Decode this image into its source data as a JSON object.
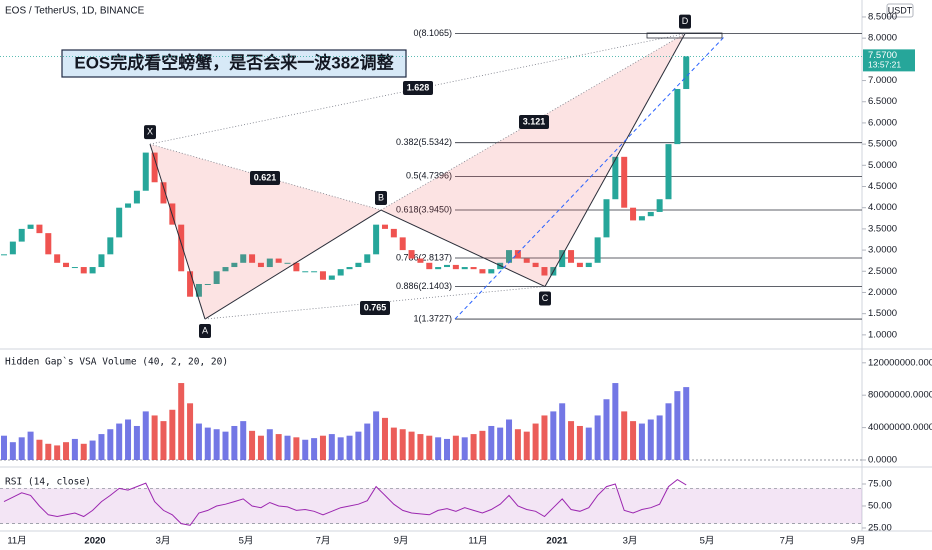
{
  "header": {
    "symbol": "EOS / TetherUS, 1D, BINANCE",
    "currency": "USDT"
  },
  "annotation": "EOS完成看空螃蟹，是否会来一波382调整",
  "x_labels": [
    "11月",
    "2020",
    "3月",
    "5月",
    "7月",
    "9月",
    "11月",
    "2021",
    "3月",
    "5月",
    "7月",
    "9月"
  ],
  "chart_data": [
    {
      "type": "candlestick",
      "values": [
        2.9,
        3.2,
        3.5,
        3.6,
        3.4,
        2.9,
        2.7,
        2.6,
        2.6,
        2.45,
        2.6,
        2.9,
        3.3,
        4.0,
        4.1,
        4.4,
        5.3,
        4.6,
        4.1,
        3.6,
        2.5,
        1.9,
        2.2,
        2.2,
        2.5,
        2.6,
        2.7,
        2.9,
        2.7,
        2.6,
        2.8,
        2.7,
        2.7,
        2.5,
        2.5,
        2.5,
        2.3,
        2.4,
        2.55,
        2.6,
        2.7,
        2.9,
        3.6,
        3.5,
        3.3,
        3.0,
        2.8,
        2.7,
        2.55,
        2.6,
        2.65,
        2.55,
        2.6,
        2.55,
        2.45,
        2.55,
        2.7,
        3.0,
        2.8,
        2.7,
        2.6,
        2.4,
        2.6,
        3.0,
        2.7,
        2.6,
        2.7,
        3.3,
        4.2,
        5.2,
        4.0,
        3.7,
        3.8,
        3.9,
        4.2,
        5.5,
        6.8,
        7.57
      ],
      "up_color": "#26a69a",
      "down_color": "#ef5350",
      "ylim": [
        0.69,
        8.9
      ],
      "yticks": [
        {
          "value": 8.5,
          "label": "8.5000"
        },
        {
          "value": 8.0,
          "label": "8.0000"
        },
        {
          "value": 7.0,
          "label": "7.0000"
        },
        {
          "value": 6.5,
          "label": "6.5000"
        },
        {
          "value": 6.0,
          "label": "6.0000"
        },
        {
          "value": 5.5,
          "label": "5.5000"
        },
        {
          "value": 5.0,
          "label": "5.0000"
        },
        {
          "value": 4.5,
          "label": "4.5000"
        },
        {
          "value": 4.0,
          "label": "4.0000"
        },
        {
          "value": 3.5,
          "label": "3.5000"
        },
        {
          "value": 3.0,
          "label": "3.0000"
        },
        {
          "value": 2.5,
          "label": "2.5000"
        },
        {
          "value": 2.0,
          "label": "2.0000"
        },
        {
          "value": 1.5,
          "label": "1.5000"
        },
        {
          "value": 1.0,
          "label": "1.0000"
        }
      ],
      "last_price": 7.57,
      "last_price_label": "7.5700",
      "countdown": "13:57:21",
      "fib_levels": [
        {
          "value": 8.1065,
          "label": "0(8.1065)"
        },
        {
          "value": 5.5342,
          "label": "0.382(5.5342)"
        },
        {
          "value": 4.7396,
          "label": "0.5(4.7396)"
        },
        {
          "value": 3.945,
          "label": "0.618(3.9450)"
        },
        {
          "value": 2.8137,
          "label": "0.786(2.8137)"
        },
        {
          "value": 2.1403,
          "label": "0.886(2.1403)"
        },
        {
          "value": 1.3727,
          "label": "1(1.3727)"
        }
      ],
      "pattern": {
        "points": [
          {
            "label": "X",
            "value": 5.5
          },
          {
            "label": "A",
            "value": 1.3727
          },
          {
            "label": "B",
            "value": 3.945
          },
          {
            "label": "C",
            "value": 2.1403
          },
          {
            "label": "D",
            "value": 8.1065
          }
        ],
        "ratios": [
          0.621,
          1.628,
          3.121,
          0.765
        ],
        "fill": "rgba(239,83,80,0.16)"
      }
    },
    {
      "type": "bar",
      "title": "Hidden Gap`s VSA Volume (40, 2, 20, 20)",
      "values": [
        30000000,
        22000000,
        28000000,
        35000000,
        25000000,
        20000000,
        18000000,
        22000000,
        26000000,
        20000000,
        24000000,
        32000000,
        38000000,
        45000000,
        50000000,
        42000000,
        60000000,
        55000000,
        48000000,
        62000000,
        95000000,
        70000000,
        45000000,
        40000000,
        38000000,
        35000000,
        42000000,
        48000000,
        36000000,
        30000000,
        38000000,
        32000000,
        30000000,
        28000000,
        25000000,
        27000000,
        30000000,
        32000000,
        28000000,
        30000000,
        35000000,
        45000000,
        60000000,
        52000000,
        40000000,
        38000000,
        35000000,
        32000000,
        30000000,
        28000000,
        26000000,
        30000000,
        28000000,
        32000000,
        36000000,
        42000000,
        40000000,
        50000000,
        38000000,
        35000000,
        45000000,
        55000000,
        60000000,
        70000000,
        48000000,
        42000000,
        40000000,
        55000000,
        75000000,
        95000000,
        60000000,
        48000000,
        45000000,
        50000000,
        55000000,
        70000000,
        85000000,
        90000000
      ],
      "up_color": "#5b5fe0",
      "down_color": "#e8413c",
      "ylim": [
        0,
        135800000
      ],
      "yticks": [
        {
          "value": 120000000,
          "label": "120000000.0000"
        },
        {
          "value": 80000000,
          "label": "80000000.0000"
        },
        {
          "value": 40000000,
          "label": "40000000.0000"
        },
        {
          "value": 0,
          "label": "0.0000"
        }
      ]
    },
    {
      "type": "line",
      "title": "RSI (14, close)",
      "values": [
        55,
        60,
        65,
        62,
        50,
        40,
        38,
        40,
        42,
        38,
        45,
        55,
        62,
        70,
        68,
        72,
        76,
        55,
        45,
        40,
        30,
        28,
        42,
        45,
        50,
        52,
        55,
        58,
        50,
        48,
        54,
        50,
        49,
        45,
        46,
        44,
        40,
        44,
        48,
        50,
        52,
        56,
        72,
        62,
        52,
        45,
        42,
        41,
        40,
        45,
        47,
        44,
        48,
        45,
        42,
        46,
        52,
        62,
        50,
        46,
        44,
        38,
        48,
        58,
        46,
        44,
        48,
        62,
        72,
        75,
        45,
        42,
        46,
        48,
        52,
        72,
        80,
        74
      ],
      "color": "#9c27b0",
      "band": [
        30,
        70
      ],
      "ylim": [
        22.7,
        90.9
      ],
      "yticks": [
        {
          "value": 75,
          "label": "75.00"
        },
        {
          "value": 50,
          "label": "50.00"
        },
        {
          "value": 25,
          "label": "25.00"
        }
      ]
    }
  ]
}
